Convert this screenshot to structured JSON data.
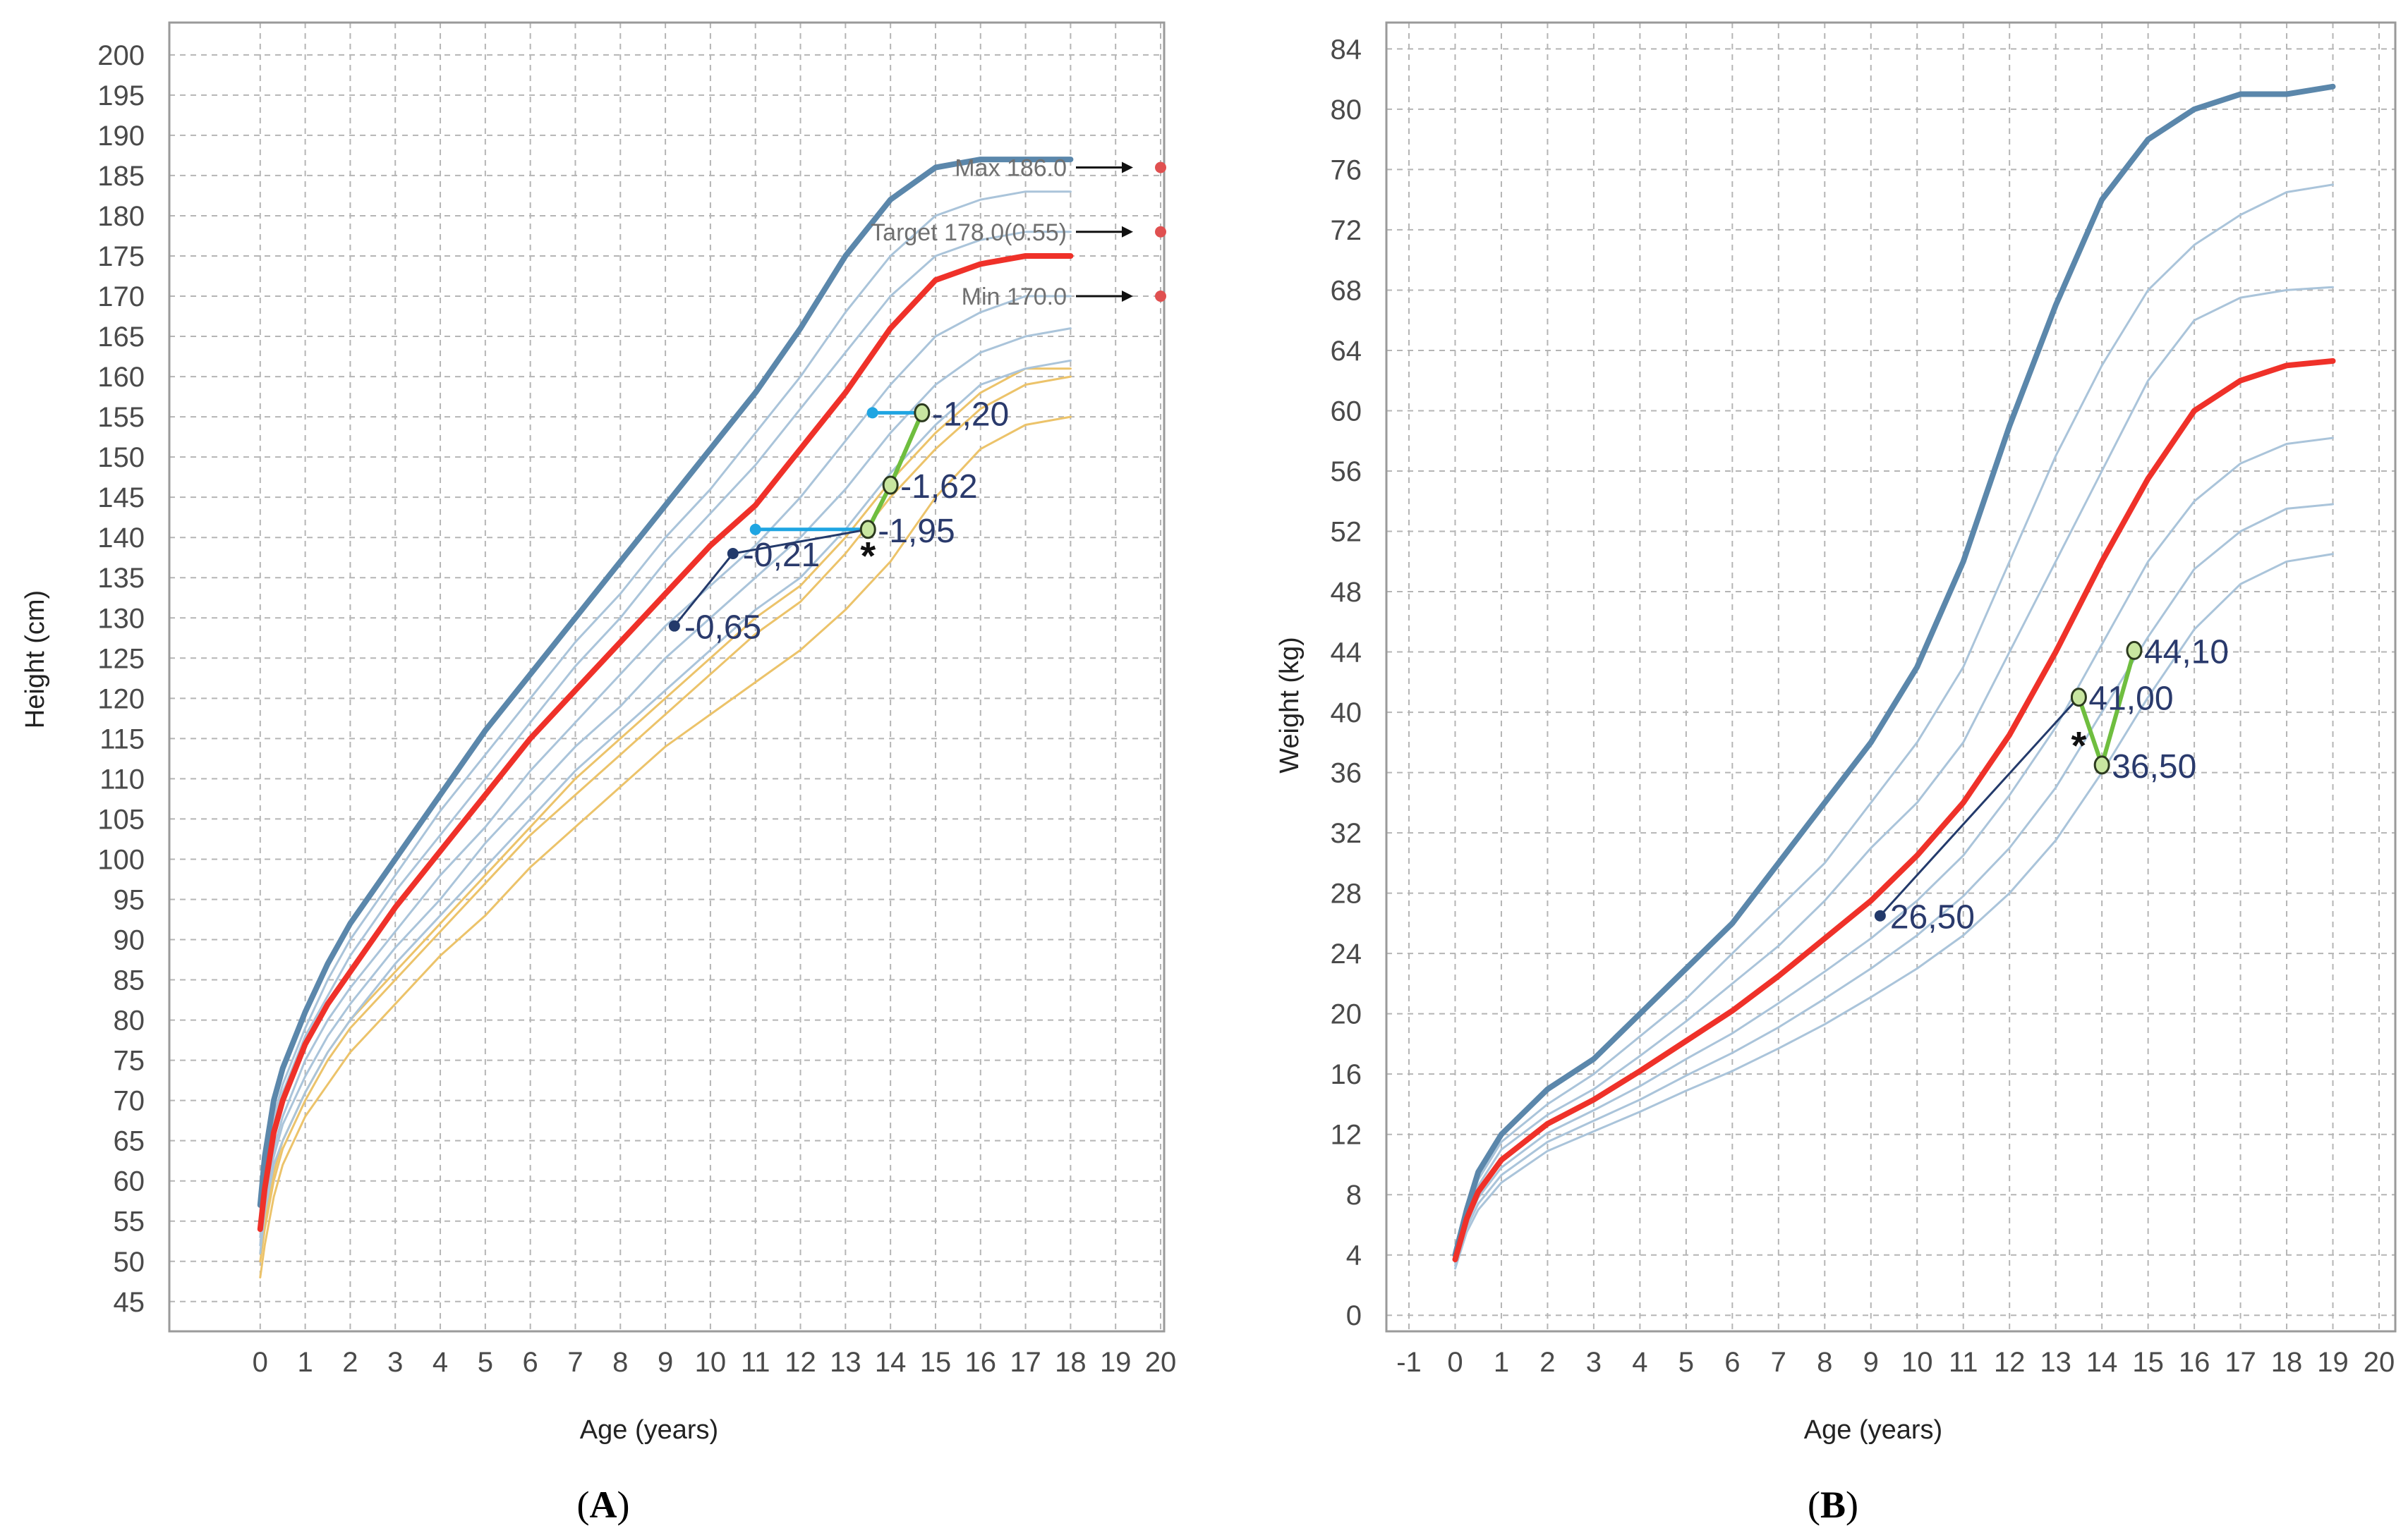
{
  "figure": {
    "panel_a_label": "A",
    "panel_b_label": "B"
  },
  "chart_data": [
    {
      "type": "line",
      "panel": "A",
      "title": "",
      "xlabel": "Age (years)",
      "ylabel": "Height (cm)",
      "xlim": [
        -1,
        20
      ],
      "ylim": [
        42,
        202
      ],
      "grid": true,
      "x_ticks": [
        0,
        1,
        2,
        3,
        4,
        5,
        6,
        7,
        8,
        9,
        10,
        11,
        12,
        13,
        14,
        15,
        16,
        17,
        18,
        19,
        20
      ],
      "y_ticks": [
        45,
        50,
        55,
        60,
        65,
        70,
        75,
        80,
        85,
        90,
        95,
        100,
        105,
        110,
        115,
        120,
        125,
        130,
        135,
        140,
        145,
        150,
        155,
        160,
        165,
        170,
        175,
        180,
        185,
        190,
        195,
        200
      ],
      "colors": {
        "upper": "#5b87ab",
        "reference": "#ef3129",
        "percentile": "#aac4da",
        "parental": "#ecc36a",
        "patient": "#233a6b",
        "treatment": "#6fbe3f",
        "bone_age": "#1fa5e2",
        "target_dot": "#e05050"
      },
      "series": [
        {
          "role": "upper",
          "x": [
            0,
            0.1,
            0.3,
            0.5,
            1,
            1.5,
            2,
            3,
            4,
            5,
            6,
            7,
            8,
            9,
            10,
            11,
            12,
            13,
            14,
            15,
            16,
            17,
            18
          ],
          "y": [
            57,
            63,
            70,
            74,
            81,
            87,
            92,
            100,
            108,
            116,
            123,
            130,
            137,
            144,
            151,
            158,
            166,
            175,
            182,
            186,
            187,
            187,
            187
          ]
        },
        {
          "role": "percentile",
          "x": [
            0,
            0.1,
            0.3,
            0.5,
            1,
            1.5,
            2,
            3,
            4,
            5,
            6,
            7,
            8,
            9,
            10,
            11,
            12,
            13,
            14,
            15,
            16,
            17,
            18
          ],
          "y": [
            56,
            61,
            68,
            72,
            79,
            85,
            90,
            98,
            106,
            113,
            120,
            127,
            133,
            140,
            146,
            153,
            160,
            168,
            175,
            180,
            182,
            183,
            183
          ]
        },
        {
          "role": "percentile",
          "x": [
            0,
            0.1,
            0.3,
            0.5,
            1,
            1.5,
            2,
            3,
            4,
            5,
            6,
            7,
            8,
            9,
            10,
            11,
            12,
            13,
            14,
            15,
            16,
            17,
            18
          ],
          "y": [
            55,
            60,
            67,
            71,
            78,
            83,
            88,
            96,
            103,
            110,
            117,
            124,
            130,
            137,
            143,
            149,
            156,
            163,
            170,
            175,
            177,
            178,
            178
          ]
        },
        {
          "role": "reference",
          "x": [
            0,
            0.1,
            0.3,
            0.5,
            1,
            1.5,
            2,
            3,
            4,
            5,
            6,
            7,
            8,
            9,
            10,
            11,
            12,
            13,
            14,
            15,
            16,
            17,
            18
          ],
          "y": [
            54,
            59,
            66,
            70,
            77,
            82,
            86,
            94,
            101,
            108,
            115,
            121,
            127,
            133,
            139,
            144,
            151,
            158,
            166,
            172,
            174,
            175,
            175
          ]
        },
        {
          "role": "percentile",
          "x": [
            0,
            0.1,
            0.3,
            0.5,
            1,
            1.5,
            2,
            3,
            4,
            5,
            6,
            7,
            8,
            9,
            10,
            11,
            12,
            13,
            14,
            15,
            16,
            17,
            18
          ],
          "y": [
            53,
            58,
            64,
            68,
            75,
            80,
            84,
            91,
            98,
            104,
            111,
            117,
            123,
            129,
            134,
            139,
            145,
            152,
            159,
            165,
            168,
            170,
            170
          ]
        },
        {
          "role": "percentile",
          "x": [
            0,
            0.1,
            0.3,
            0.5,
            1,
            1.5,
            2,
            3,
            4,
            5,
            6,
            7,
            8,
            9,
            10,
            11,
            12,
            13,
            14,
            15,
            16,
            17,
            18
          ],
          "y": [
            52,
            57,
            63,
            67,
            73,
            78,
            82,
            89,
            95,
            102,
            108,
            114,
            119,
            125,
            130,
            135,
            140,
            146,
            153,
            159,
            163,
            165,
            166
          ]
        },
        {
          "role": "percentile",
          "x": [
            0,
            0.1,
            0.3,
            0.5,
            1,
            1.5,
            2,
            3,
            4,
            5,
            6,
            7,
            8,
            9,
            10,
            11,
            12,
            13,
            14,
            15,
            16,
            17,
            18
          ],
          "y": [
            51,
            56,
            62,
            65,
            71,
            76,
            80,
            87,
            93,
            99,
            105,
            111,
            116,
            121,
            126,
            131,
            135,
            141,
            148,
            154,
            159,
            161,
            162
          ]
        },
        {
          "role": "parental",
          "x": [
            0,
            0.1,
            0.3,
            0.5,
            1,
            1.5,
            2,
            3,
            4,
            5,
            6,
            7,
            8,
            9,
            10,
            11,
            12,
            13,
            14,
            15,
            16,
            17,
            18
          ],
          "y": [
            51,
            55,
            61,
            65,
            71,
            76,
            80,
            86,
            92,
            98,
            104,
            110,
            115,
            120,
            125,
            130,
            134,
            140,
            147,
            153,
            158,
            161,
            161
          ]
        },
        {
          "role": "parental",
          "x": [
            0,
            0.1,
            0.3,
            0.5,
            1,
            1.5,
            2,
            3,
            4,
            5,
            6,
            7,
            8,
            9,
            10,
            11,
            12,
            13,
            14,
            15,
            16,
            17,
            18
          ],
          "y": [
            50,
            54,
            60,
            64,
            70,
            75,
            79,
            85,
            91,
            97,
            103,
            108,
            113,
            118,
            123,
            128,
            132,
            138,
            145,
            151,
            156,
            159,
            160
          ]
        },
        {
          "role": "parental",
          "x": [
            0,
            0.1,
            0.3,
            0.5,
            1,
            1.5,
            2,
            3,
            4,
            5,
            6,
            7,
            8,
            9,
            10,
            11,
            12,
            13,
            14,
            15,
            16,
            17,
            18
          ],
          "y": [
            48,
            52,
            58,
            62,
            68,
            72,
            76,
            82,
            88,
            93,
            99,
            104,
            109,
            114,
            118,
            122,
            126,
            131,
            137,
            145,
            151,
            154,
            155
          ]
        }
      ],
      "target_height": [
        {
          "label": "Max 186.0",
          "value": 186.0
        },
        {
          "label": "Target 178.0(0.55)",
          "value": 178.0
        },
        {
          "label": "Min 170.0",
          "value": 170.0
        }
      ],
      "patient_path": {
        "x": [
          9.2,
          10.5,
          13.5
        ],
        "y": [
          129,
          138,
          141
        ]
      },
      "treatment_path": {
        "x": [
          13.5,
          14,
          14.7
        ],
        "y": [
          141,
          146.5,
          155.5
        ]
      },
      "bone_age_lines": [
        {
          "x": [
            11,
            13.5
          ],
          "y": [
            141,
            141
          ]
        },
        {
          "x": [
            13.6,
            14.7
          ],
          "y": [
            155.5,
            155.5
          ]
        }
      ],
      "points": [
        {
          "x": 9.2,
          "y": 129,
          "label": "-0,65",
          "marker": "dot"
        },
        {
          "x": 10.5,
          "y": 138,
          "label": "-0,21",
          "marker": "dot"
        },
        {
          "x": 13.5,
          "y": 141,
          "label": "-1,95",
          "marker": "ring"
        },
        {
          "x": 14.0,
          "y": 146.5,
          "label": "-1,62",
          "marker": "ring"
        },
        {
          "x": 14.7,
          "y": 155.5,
          "label": "-1,20",
          "marker": "ring"
        }
      ],
      "annotations": [
        {
          "text": "*",
          "x": 13.5,
          "y": 138.5
        }
      ]
    },
    {
      "type": "line",
      "panel": "B",
      "title": "",
      "xlabel": "Age (years)",
      "ylabel": "Weight (kg)",
      "xlim": [
        -1,
        20
      ],
      "ylim": [
        -2,
        85
      ],
      "grid": true,
      "x_ticks": [
        -1,
        0,
        1,
        2,
        3,
        4,
        5,
        6,
        7,
        8,
        9,
        10,
        11,
        12,
        13,
        14,
        15,
        16,
        17,
        18,
        19,
        20
      ],
      "y_ticks": [
        0,
        4,
        8,
        12,
        16,
        20,
        24,
        28,
        32,
        36,
        40,
        44,
        48,
        52,
        56,
        60,
        64,
        68,
        72,
        76,
        80,
        84
      ],
      "colors": {
        "upper": "#5b87ab",
        "reference": "#ef3129",
        "percentile": "#aac4da",
        "patient": "#233a6b",
        "treatment": "#6fbe3f"
      },
      "series": [
        {
          "role": "upper",
          "x": [
            0,
            0.25,
            0.5,
            1,
            2,
            3,
            4,
            5,
            6,
            7,
            8,
            9,
            10,
            11,
            12,
            13,
            14,
            15,
            16,
            17,
            18,
            19
          ],
          "y": [
            4,
            7,
            9.5,
            12,
            15,
            17,
            20,
            23,
            26,
            30,
            34,
            38,
            43,
            50,
            59,
            67,
            74,
            78,
            80,
            81,
            81,
            81.5
          ]
        },
        {
          "role": "percentile",
          "x": [
            0,
            0.25,
            0.5,
            1,
            2,
            3,
            4,
            5,
            6,
            7,
            8,
            9,
            10,
            11,
            12,
            13,
            14,
            15,
            16,
            17,
            18,
            19
          ],
          "y": [
            3.9,
            6.8,
            9,
            11.5,
            14,
            16,
            18.5,
            21,
            24,
            27,
            30,
            34,
            38,
            43,
            50,
            57,
            63,
            68,
            71,
            73,
            74.5,
            75
          ]
        },
        {
          "role": "percentile",
          "x": [
            0,
            0.25,
            0.5,
            1,
            2,
            3,
            4,
            5,
            6,
            7,
            8,
            9,
            10,
            11,
            12,
            13,
            14,
            15,
            16,
            17,
            18,
            19
          ],
          "y": [
            3.8,
            6.6,
            8.6,
            11,
            13.3,
            15,
            17.2,
            19.5,
            22,
            24.5,
            27.5,
            31,
            34,
            38,
            44,
            50,
            56,
            62,
            66,
            67.5,
            68,
            68.2
          ]
        },
        {
          "role": "reference",
          "x": [
            0,
            0.25,
            0.5,
            1,
            2,
            3,
            4,
            5,
            6,
            7,
            8,
            9,
            10,
            11,
            12,
            13,
            14,
            15,
            16,
            17,
            18,
            19
          ],
          "y": [
            3.7,
            6.4,
            8.2,
            10.3,
            12.7,
            14.3,
            16.2,
            18.2,
            20.2,
            22.5,
            25,
            27.5,
            30.5,
            34,
            38.5,
            44,
            50,
            55.5,
            60,
            62,
            63,
            63.3
          ]
        },
        {
          "role": "percentile",
          "x": [
            0,
            0.25,
            0.5,
            1,
            2,
            3,
            4,
            5,
            6,
            7,
            8,
            9,
            10,
            11,
            12,
            13,
            14,
            15,
            16,
            17,
            18,
            19
          ],
          "y": [
            3.5,
            6.1,
            7.8,
            9.8,
            12.1,
            13.6,
            15.2,
            17,
            18.7,
            20.7,
            22.8,
            25,
            27.5,
            30.5,
            34.5,
            39,
            44.5,
            50,
            54,
            56.5,
            57.8,
            58.2
          ]
        },
        {
          "role": "percentile",
          "x": [
            0,
            0.25,
            0.5,
            1,
            2,
            3,
            4,
            5,
            6,
            7,
            8,
            9,
            10,
            11,
            12,
            13,
            14,
            15,
            16,
            17,
            18,
            19
          ],
          "y": [
            3.3,
            5.8,
            7.4,
            9.3,
            11.5,
            12.9,
            14.3,
            15.9,
            17.4,
            19.1,
            21,
            23,
            25.2,
            27.8,
            31,
            35,
            40,
            45,
            49.5,
            52,
            53.5,
            53.8
          ]
        },
        {
          "role": "percentile",
          "x": [
            0,
            0.25,
            0.5,
            1,
            2,
            3,
            4,
            5,
            6,
            7,
            8,
            9,
            10,
            11,
            12,
            13,
            14,
            15,
            16,
            17,
            18,
            19
          ],
          "y": [
            3.1,
            5.5,
            7,
            8.8,
            10.9,
            12.2,
            13.5,
            14.9,
            16.2,
            17.7,
            19.3,
            21.1,
            23,
            25.2,
            28,
            31.5,
            36,
            41,
            45.5,
            48.5,
            50,
            50.5
          ]
        }
      ],
      "patient_path": {
        "x": [
          9.2,
          13.5
        ],
        "y": [
          26.5,
          41.0
        ]
      },
      "treatment_path": {
        "x": [
          13.5,
          14.0,
          14.7
        ],
        "y": [
          41.0,
          36.5,
          44.1
        ]
      },
      "points": [
        {
          "x": 9.2,
          "y": 26.5,
          "label": "26,50",
          "marker": "dot"
        },
        {
          "x": 13.5,
          "y": 41.0,
          "label": "41,00",
          "marker": "ring"
        },
        {
          "x": 14.0,
          "y": 36.5,
          "label": "36,50",
          "marker": "ring"
        },
        {
          "x": 14.7,
          "y": 44.1,
          "label": "44,10",
          "marker": "ring"
        }
      ],
      "annotations": [
        {
          "text": "*",
          "x": 13.5,
          "y": 38.2
        }
      ]
    }
  ]
}
